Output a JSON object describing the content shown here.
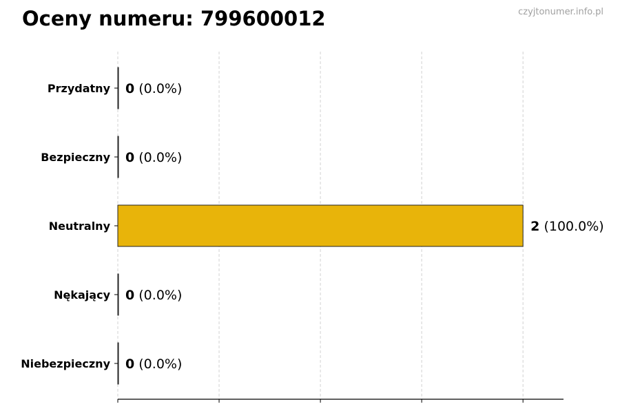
{
  "chart_data": {
    "type": "bar",
    "orientation": "horizontal",
    "title": "Oceny numeru: 799600012",
    "watermark": "czyjtonumer.info.pl",
    "categories": [
      "Przydatny",
      "Bezpieczny",
      "Neutralny",
      "Nękający",
      "Niebezpieczny"
    ],
    "values": [
      0,
      0,
      2,
      0,
      0
    ],
    "data_labels": [
      {
        "count": "0",
        "percent": "(0.0%)"
      },
      {
        "count": "0",
        "percent": "(0.0%)"
      },
      {
        "count": "2",
        "percent": "(100.0%)"
      },
      {
        "count": "0",
        "percent": "(0.0%)"
      },
      {
        "count": "0",
        "percent": "(0.0%)"
      }
    ],
    "xlim": [
      0,
      2.2
    ],
    "xticks": [
      0,
      0.5,
      1,
      1.5,
      2
    ],
    "xtick_labels_shown": false,
    "grid": "vertical dashed",
    "bar_color": "#E8B40A",
    "xlabel": "",
    "ylabel": ""
  }
}
